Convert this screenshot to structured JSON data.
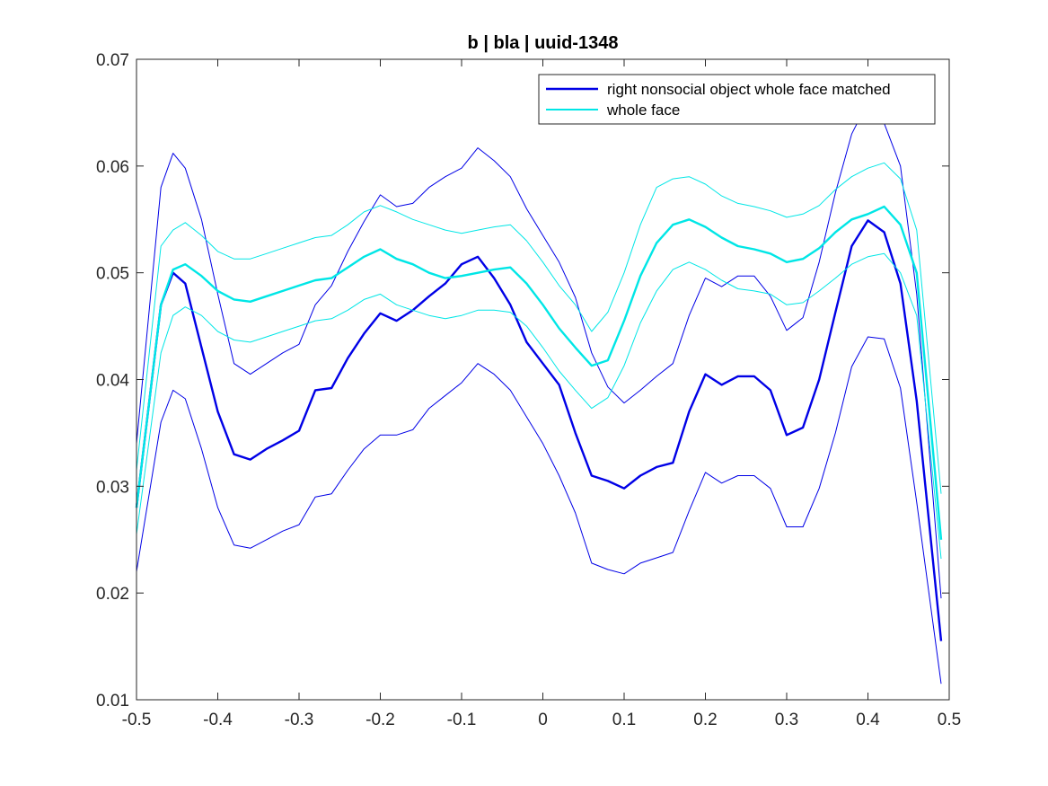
{
  "colors": {
    "matched": "#0000e6",
    "whole_face": "#00e6e6",
    "axis": "#262626",
    "background": "#ffffff"
  },
  "chart_data": {
    "type": "line",
    "title": "b | bla | uuid-1348",
    "xlabel": "",
    "ylabel": "",
    "xlim": [
      -0.5,
      0.5
    ],
    "ylim": [
      0.01,
      0.07
    ],
    "xticks": [
      -0.5,
      -0.4,
      -0.3,
      -0.2,
      -0.1,
      0,
      0.1,
      0.2,
      0.3,
      0.4,
      0.5
    ],
    "xtick_labels": [
      "-0.5",
      "-0.4",
      "-0.3",
      "-0.2",
      "-0.1",
      "0",
      "0.1",
      "0.2",
      "0.3",
      "0.4",
      "0.5"
    ],
    "yticks": [
      0.01,
      0.02,
      0.03,
      0.04,
      0.05,
      0.06,
      0.07
    ],
    "ytick_labels": [
      "0.01",
      "0.02",
      "0.03",
      "0.04",
      "0.05",
      "0.06",
      "0.07"
    ],
    "grid": false,
    "legend_position": "top-right",
    "series": [
      {
        "name": "right nonsocial object whole face matched",
        "color": "#0000e6",
        "x": [
          -0.5,
          -0.47,
          -0.455,
          -0.44,
          -0.42,
          -0.4,
          -0.38,
          -0.36,
          -0.34,
          -0.32,
          -0.3,
          -0.28,
          -0.26,
          -0.24,
          -0.22,
          -0.2,
          -0.18,
          -0.16,
          -0.14,
          -0.12,
          -0.1,
          -0.08,
          -0.06,
          -0.04,
          -0.02,
          0,
          0.02,
          0.04,
          0.06,
          0.08,
          0.1,
          0.12,
          0.14,
          0.16,
          0.18,
          0.2,
          0.22,
          0.24,
          0.26,
          0.28,
          0.3,
          0.32,
          0.34,
          0.36,
          0.38,
          0.4,
          0.42,
          0.44,
          0.46,
          0.49
        ],
        "mean": [
          0.028,
          0.047,
          0.05,
          0.049,
          0.043,
          0.037,
          0.033,
          0.0325,
          0.0335,
          0.0343,
          0.0352,
          0.039,
          0.0392,
          0.042,
          0.0443,
          0.0462,
          0.0455,
          0.0465,
          0.0478,
          0.049,
          0.0508,
          0.0515,
          0.0495,
          0.047,
          0.0435,
          0.0415,
          0.0395,
          0.035,
          0.031,
          0.0305,
          0.0298,
          0.031,
          0.0318,
          0.0322,
          0.037,
          0.0405,
          0.0395,
          0.0403,
          0.0403,
          0.039,
          0.0348,
          0.0355,
          0.04,
          0.0463,
          0.0525,
          0.0549,
          0.0538,
          0.049,
          0.038,
          0.0155
        ],
        "upper": [
          0.034,
          0.058,
          0.0612,
          0.0598,
          0.055,
          0.048,
          0.0415,
          0.0405,
          0.0415,
          0.0425,
          0.0433,
          0.047,
          0.0488,
          0.052,
          0.0548,
          0.0573,
          0.0562,
          0.0565,
          0.058,
          0.059,
          0.0598,
          0.0617,
          0.0605,
          0.059,
          0.056,
          0.0535,
          0.051,
          0.0477,
          0.0425,
          0.0393,
          0.0378,
          0.039,
          0.0403,
          0.0415,
          0.046,
          0.0495,
          0.0487,
          0.0497,
          0.0497,
          0.0478,
          0.0446,
          0.0458,
          0.051,
          0.0575,
          0.063,
          0.066,
          0.064,
          0.06,
          0.048,
          0.0195
        ],
        "lower": [
          0.022,
          0.036,
          0.039,
          0.0382,
          0.0335,
          0.028,
          0.0245,
          0.0242,
          0.025,
          0.0258,
          0.0264,
          0.029,
          0.0293,
          0.0315,
          0.0335,
          0.0348,
          0.0348,
          0.0353,
          0.0373,
          0.0385,
          0.0397,
          0.0415,
          0.0405,
          0.039,
          0.0365,
          0.034,
          0.031,
          0.0275,
          0.0228,
          0.0222,
          0.0218,
          0.0228,
          0.0233,
          0.0238,
          0.0277,
          0.0313,
          0.0303,
          0.031,
          0.031,
          0.0298,
          0.0262,
          0.0262,
          0.0298,
          0.035,
          0.0412,
          0.044,
          0.0438,
          0.0392,
          0.0285,
          0.0115
        ]
      },
      {
        "name": "whole face",
        "color": "#00e6e6",
        "x": [
          -0.5,
          -0.47,
          -0.455,
          -0.44,
          -0.42,
          -0.4,
          -0.38,
          -0.36,
          -0.34,
          -0.32,
          -0.3,
          -0.28,
          -0.26,
          -0.24,
          -0.22,
          -0.2,
          -0.18,
          -0.16,
          -0.14,
          -0.12,
          -0.1,
          -0.08,
          -0.06,
          -0.04,
          -0.02,
          0,
          0.02,
          0.04,
          0.06,
          0.08,
          0.1,
          0.12,
          0.14,
          0.16,
          0.18,
          0.2,
          0.22,
          0.24,
          0.26,
          0.28,
          0.3,
          0.32,
          0.34,
          0.36,
          0.38,
          0.4,
          0.42,
          0.44,
          0.46,
          0.49
        ],
        "mean": [
          0.028,
          0.047,
          0.0503,
          0.0508,
          0.0497,
          0.0483,
          0.0475,
          0.0473,
          0.0478,
          0.0483,
          0.0488,
          0.0493,
          0.0495,
          0.0505,
          0.0515,
          0.0522,
          0.0513,
          0.0508,
          0.05,
          0.0495,
          0.0497,
          0.05,
          0.0503,
          0.0505,
          0.049,
          0.047,
          0.0448,
          0.043,
          0.0413,
          0.0418,
          0.0455,
          0.0497,
          0.0528,
          0.0545,
          0.055,
          0.0543,
          0.0533,
          0.0525,
          0.0522,
          0.0518,
          0.051,
          0.0513,
          0.0523,
          0.0538,
          0.055,
          0.0555,
          0.0562,
          0.0545,
          0.05,
          0.025
        ],
        "upper": [
          0.0315,
          0.0525,
          0.054,
          0.0547,
          0.0535,
          0.052,
          0.0513,
          0.0513,
          0.0518,
          0.0523,
          0.0528,
          0.0533,
          0.0535,
          0.0545,
          0.0557,
          0.0563,
          0.0557,
          0.055,
          0.0545,
          0.054,
          0.0537,
          0.054,
          0.0543,
          0.0545,
          0.053,
          0.051,
          0.0488,
          0.047,
          0.0445,
          0.0463,
          0.05,
          0.0545,
          0.058,
          0.0588,
          0.059,
          0.0583,
          0.0572,
          0.0565,
          0.0562,
          0.0558,
          0.0552,
          0.0555,
          0.0563,
          0.0578,
          0.059,
          0.0598,
          0.0603,
          0.0588,
          0.054,
          0.0293
        ],
        "lower": [
          0.0255,
          0.0425,
          0.046,
          0.0468,
          0.046,
          0.0445,
          0.0437,
          0.0435,
          0.044,
          0.0445,
          0.045,
          0.0455,
          0.0457,
          0.0465,
          0.0475,
          0.048,
          0.047,
          0.0465,
          0.046,
          0.0457,
          0.046,
          0.0465,
          0.0465,
          0.0463,
          0.045,
          0.043,
          0.0408,
          0.039,
          0.0373,
          0.0383,
          0.0413,
          0.0453,
          0.0483,
          0.0503,
          0.051,
          0.0503,
          0.0493,
          0.0485,
          0.0483,
          0.048,
          0.047,
          0.0472,
          0.0483,
          0.0495,
          0.0508,
          0.0515,
          0.0518,
          0.05,
          0.046,
          0.0232
        ]
      }
    ]
  }
}
